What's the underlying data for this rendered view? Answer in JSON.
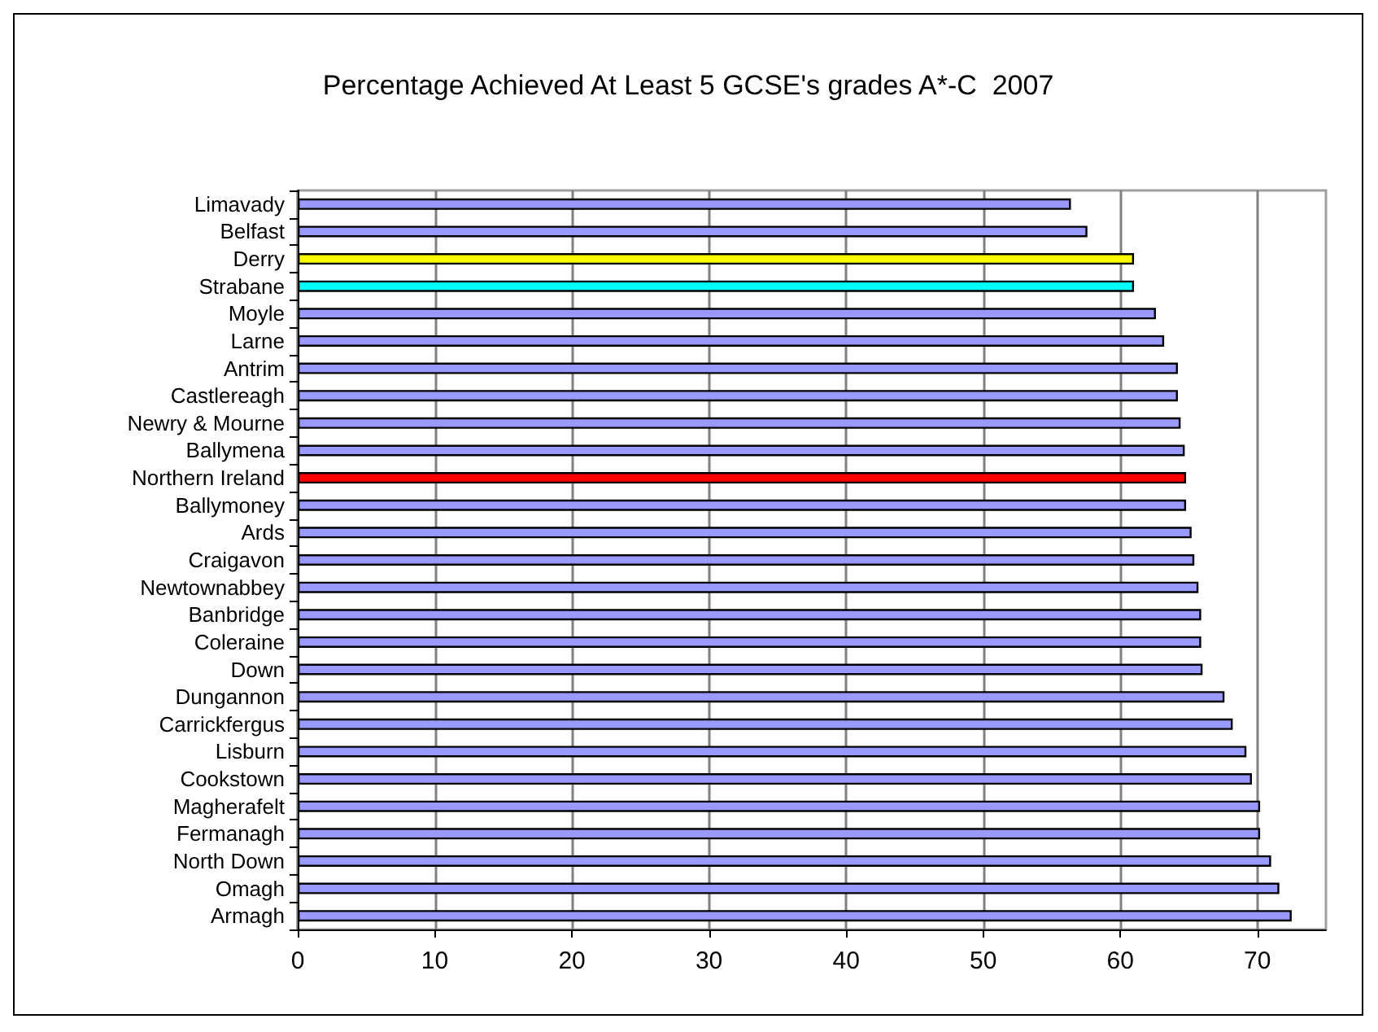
{
  "chart_data": {
    "type": "bar",
    "orientation": "horizontal",
    "title": "Percentage Achieved At Least 5 GCSE's grades A*-C  2007",
    "categories": [
      "Limavady",
      "Belfast",
      "Derry",
      "Strabane",
      "Moyle",
      "Larne",
      "Antrim",
      "Castlereagh",
      "Newry & Mourne",
      "Ballymena",
      "Northern Ireland",
      "Ballymoney",
      "Ards",
      "Craigavon",
      "Newtownabbey",
      "Banbridge",
      "Coleraine",
      "Down",
      "Dungannon",
      "Carrickfergus",
      "Lisburn",
      "Cookstown",
      "Magherafelt",
      "Fermanagh",
      "North Down",
      "Omagh",
      "Armagh"
    ],
    "values": [
      56.4,
      57.6,
      61.0,
      61.0,
      62.6,
      63.2,
      64.2,
      64.2,
      64.4,
      64.7,
      64.8,
      64.8,
      65.2,
      65.4,
      65.7,
      65.9,
      65.9,
      66.0,
      67.6,
      68.2,
      69.2,
      69.6,
      70.2,
      70.2,
      71.0,
      71.6,
      72.5
    ],
    "colors": [
      "#9999ff",
      "#9999ff",
      "#ffff00",
      "#00ffff",
      "#9999ff",
      "#9999ff",
      "#9999ff",
      "#9999ff",
      "#9999ff",
      "#9999ff",
      "#ff0000",
      "#9999ff",
      "#9999ff",
      "#9999ff",
      "#9999ff",
      "#9999ff",
      "#9999ff",
      "#9999ff",
      "#9999ff",
      "#9999ff",
      "#9999ff",
      "#9999ff",
      "#9999ff",
      "#9999ff",
      "#9999ff",
      "#9999ff",
      "#9999ff"
    ],
    "xlim": [
      0,
      75
    ],
    "xticks": [
      0,
      10,
      20,
      30,
      40,
      50,
      60,
      70
    ],
    "grid": "x"
  }
}
